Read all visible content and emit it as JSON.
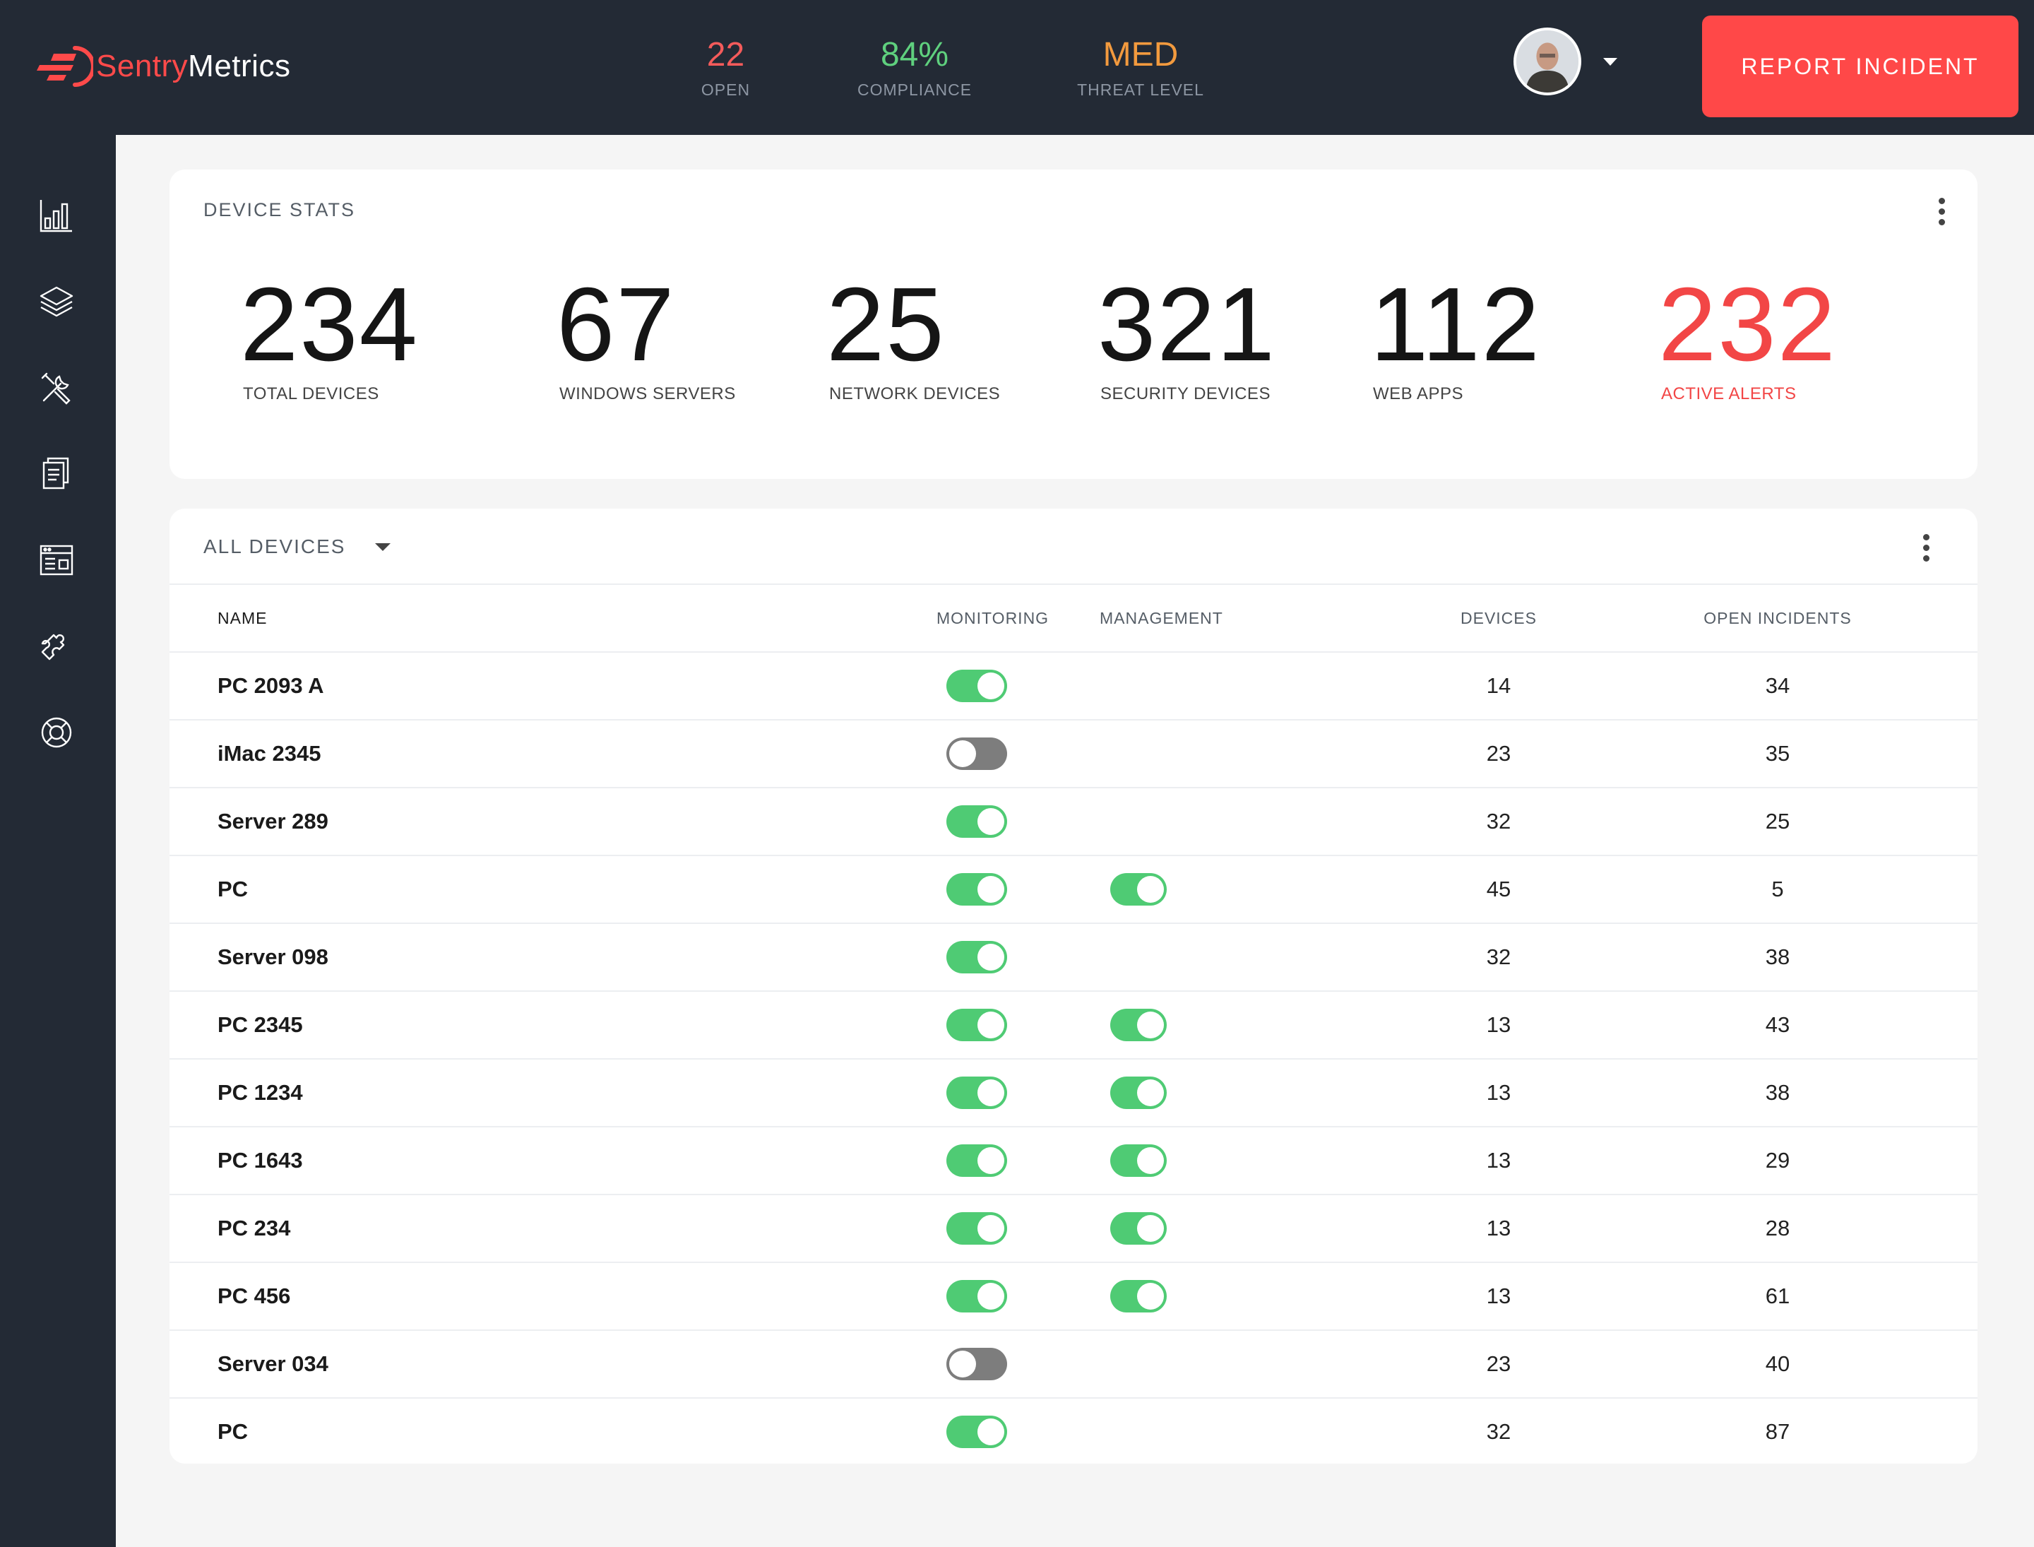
{
  "brand": {
    "part1": "Sentry",
    "part2": "Metrics"
  },
  "header_kpis": [
    {
      "value": "22",
      "label": "OPEN"
    },
    {
      "value": "84%",
      "label": "COMPLIANCE"
    },
    {
      "value": "MED",
      "label": "THREAT LEVEL"
    }
  ],
  "report_button": "REPORT INCIDENT",
  "sidebar_icons": [
    "bar-chart-icon",
    "layers-icon",
    "tools-icon",
    "documents-icon",
    "browser-window-icon",
    "puzzle-icon",
    "lifebuoy-icon"
  ],
  "device_stats": {
    "title": "DEVICE STATS",
    "items": [
      {
        "value": "234",
        "label": "TOTAL DEVICES"
      },
      {
        "value": "67",
        "label": "WINDOWS SERVERS"
      },
      {
        "value": "25",
        "label": "NETWORK DEVICES"
      },
      {
        "value": "321",
        "label": "SECURITY DEVICES"
      },
      {
        "value": "112",
        "label": "WEB APPS"
      },
      {
        "value": "232",
        "label": "ACTIVE ALERTS"
      }
    ]
  },
  "devices_table": {
    "filter_label": "ALL DEVICES",
    "columns": [
      "NAME",
      "MONITORING",
      "MANAGEMENT",
      "DEVICES",
      "OPEN INCIDENTS"
    ],
    "rows": [
      {
        "name": "PC 2093 A",
        "monitoring": true,
        "management": null,
        "devices": "14",
        "incidents": "34"
      },
      {
        "name": "iMac 2345",
        "monitoring": false,
        "management": null,
        "devices": "23",
        "incidents": "35"
      },
      {
        "name": "Server 289",
        "monitoring": true,
        "management": null,
        "devices": "32",
        "incidents": "25"
      },
      {
        "name": "PC",
        "monitoring": true,
        "management": true,
        "devices": "45",
        "incidents": "5"
      },
      {
        "name": "Server 098",
        "monitoring": true,
        "management": null,
        "devices": "32",
        "incidents": "38"
      },
      {
        "name": "PC 2345",
        "monitoring": true,
        "management": true,
        "devices": "13",
        "incidents": "43"
      },
      {
        "name": "PC 1234",
        "monitoring": true,
        "management": true,
        "devices": "13",
        "incidents": "38"
      },
      {
        "name": "PC 1643",
        "monitoring": true,
        "management": true,
        "devices": "13",
        "incidents": "29"
      },
      {
        "name": "PC 234",
        "monitoring": true,
        "management": true,
        "devices": "13",
        "incidents": "28"
      },
      {
        "name": "PC 456",
        "monitoring": true,
        "management": true,
        "devices": "13",
        "incidents": "61"
      },
      {
        "name": "Server 034",
        "monitoring": false,
        "management": null,
        "devices": "23",
        "incidents": "40"
      },
      {
        "name": "PC",
        "monitoring": true,
        "management": null,
        "devices": "32",
        "incidents": "87"
      }
    ]
  }
}
